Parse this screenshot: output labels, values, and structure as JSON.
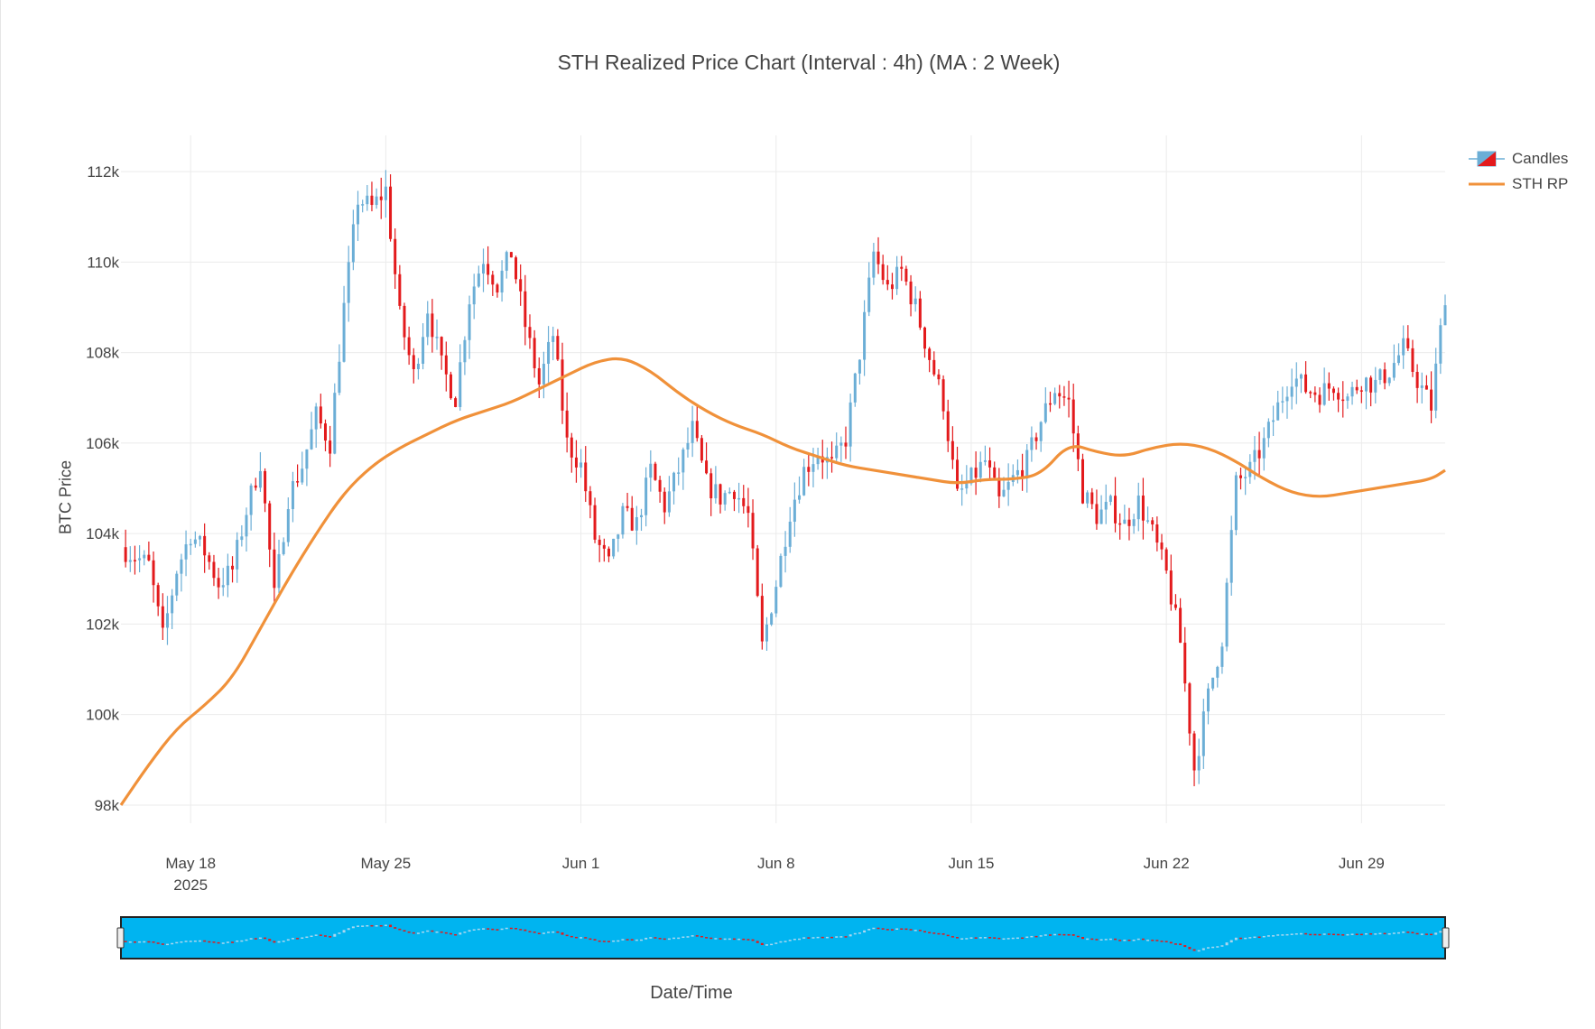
{
  "chart_data": {
    "type": "candlestick",
    "title": "STH Realized Price Chart (Interval : 4h) (MA : 2 Week)",
    "xlabel": "Date/Time",
    "ylabel": "BTC Price",
    "ylim": [
      97600,
      112800
    ],
    "xlim": [
      "2025-05-15 12:00",
      "2025-07-02 00:00"
    ],
    "yticks": [
      98000,
      100000,
      102000,
      104000,
      106000,
      108000,
      110000,
      112000
    ],
    "ytick_labels": [
      "98k",
      "100k",
      "102k",
      "104k",
      "106k",
      "108k",
      "110k",
      "112k"
    ],
    "xticks": [
      "2025-05-18",
      "2025-05-25",
      "2025-06-01",
      "2025-06-08",
      "2025-06-15",
      "2025-06-22",
      "2025-06-29"
    ],
    "xtick_labels": [
      "May 18",
      "May 25",
      "Jun 1",
      "Jun 8",
      "Jun 15",
      "Jun 22",
      "Jun 29"
    ],
    "xtick_sublabel": "2025",
    "interval_hours": 4,
    "grid": true,
    "legend_position": "top-right",
    "range_slider": true,
    "colors": {
      "increasing": "#6baed6",
      "decreasing": "#e31a1c",
      "sth_rp": "#f0913a",
      "slider_bg": "#00b4f0",
      "grid": "#ebebeb"
    },
    "series": [
      {
        "name": "Candles",
        "kind": "ohlc",
        "close_anchors": [
          [
            "2025-05-15 12:00",
            103700
          ],
          [
            "2025-05-16 12:00",
            103300
          ],
          [
            "2025-05-17 00:00",
            101700
          ],
          [
            "2025-05-17 12:00",
            103200
          ],
          [
            "2025-05-18 00:00",
            104000
          ],
          [
            "2025-05-18 12:00",
            103600
          ],
          [
            "2025-05-19 00:00",
            102900
          ],
          [
            "2025-05-19 12:00",
            103200
          ],
          [
            "2025-05-20 00:00",
            104500
          ],
          [
            "2025-05-20 12:00",
            105600
          ],
          [
            "2025-05-21 00:00",
            102600
          ],
          [
            "2025-05-21 12:00",
            104800
          ],
          [
            "2025-05-22 00:00",
            105500
          ],
          [
            "2025-05-22 12:00",
            106600
          ],
          [
            "2025-05-23 00:00",
            106000
          ],
          [
            "2025-05-23 12:00",
            109000
          ],
          [
            "2025-05-24 00:00",
            111400
          ],
          [
            "2025-05-24 12:00",
            111200
          ],
          [
            "2025-05-25 00:00",
            111600
          ],
          [
            "2025-05-25 12:00",
            108800
          ],
          [
            "2025-05-26 00:00",
            107500
          ],
          [
            "2025-05-26 12:00",
            109000
          ],
          [
            "2025-05-27 00:00",
            107700
          ],
          [
            "2025-05-27 12:00",
            107000
          ],
          [
            "2025-05-28 00:00",
            109200
          ],
          [
            "2025-05-28 12:00",
            110100
          ],
          [
            "2025-05-29 00:00",
            109500
          ],
          [
            "2025-05-29 12:00",
            110200
          ],
          [
            "2025-05-30 00:00",
            108600
          ],
          [
            "2025-05-30 12:00",
            107300
          ],
          [
            "2025-05-31 00:00",
            108400
          ],
          [
            "2025-05-31 12:00",
            106000
          ],
          [
            "2025-06-01 00:00",
            105500
          ],
          [
            "2025-06-01 12:00",
            103900
          ],
          [
            "2025-06-02 00:00",
            103300
          ],
          [
            "2025-06-02 12:00",
            104400
          ],
          [
            "2025-06-03 00:00",
            104200
          ],
          [
            "2025-06-03 12:00",
            105400
          ],
          [
            "2025-06-04 00:00",
            104600
          ],
          [
            "2025-06-04 12:00",
            105400
          ],
          [
            "2025-06-05 00:00",
            106300
          ],
          [
            "2025-06-05 12:00",
            105100
          ],
          [
            "2025-06-06 00:00",
            104800
          ],
          [
            "2025-06-06 12:00",
            105000
          ],
          [
            "2025-06-07 00:00",
            104400
          ],
          [
            "2025-06-07 12:00",
            101500
          ],
          [
            "2025-06-08 00:00",
            102900
          ],
          [
            "2025-06-08 12:00",
            104500
          ],
          [
            "2025-06-09 00:00",
            105400
          ],
          [
            "2025-06-09 12:00",
            105800
          ],
          [
            "2025-06-10 00:00",
            105500
          ],
          [
            "2025-06-10 12:00",
            106100
          ],
          [
            "2025-06-11 00:00",
            108000
          ],
          [
            "2025-06-11 12:00",
            110200
          ],
          [
            "2025-06-12 00:00",
            109400
          ],
          [
            "2025-06-12 12:00",
            109800
          ],
          [
            "2025-06-13 00:00",
            109000
          ],
          [
            "2025-06-13 12:00",
            107900
          ],
          [
            "2025-06-14 00:00",
            106900
          ],
          [
            "2025-06-14 12:00",
            104800
          ],
          [
            "2025-06-15 00:00",
            105200
          ],
          [
            "2025-06-15 12:00",
            105600
          ],
          [
            "2025-06-16 00:00",
            104700
          ],
          [
            "2025-06-16 12:00",
            105200
          ],
          [
            "2025-06-17 00:00",
            105600
          ],
          [
            "2025-06-17 12:00",
            106500
          ],
          [
            "2025-06-18 00:00",
            107200
          ],
          [
            "2025-06-18 12:00",
            106900
          ],
          [
            "2025-06-19 00:00",
            104900
          ],
          [
            "2025-06-19 12:00",
            104400
          ],
          [
            "2025-06-20 00:00",
            104600
          ],
          [
            "2025-06-20 12:00",
            104200
          ],
          [
            "2025-06-21 00:00",
            104700
          ],
          [
            "2025-06-21 12:00",
            104000
          ],
          [
            "2025-06-22 00:00",
            103100
          ],
          [
            "2025-06-22 12:00",
            101600
          ],
          [
            "2025-06-23 00:00",
            98800
          ],
          [
            "2025-06-23 12:00",
            100400
          ],
          [
            "2025-06-24 00:00",
            101700
          ],
          [
            "2025-06-24 12:00",
            105100
          ],
          [
            "2025-06-25 00:00",
            105400
          ],
          [
            "2025-06-25 12:00",
            106000
          ],
          [
            "2025-06-26 00:00",
            106800
          ],
          [
            "2025-06-26 12:00",
            107500
          ],
          [
            "2025-06-27 00:00",
            107200
          ],
          [
            "2025-06-27 12:00",
            107100
          ],
          [
            "2025-06-28 00:00",
            107300
          ],
          [
            "2025-06-28 12:00",
            107000
          ],
          [
            "2025-06-29 00:00",
            107400
          ],
          [
            "2025-06-29 12:00",
            107300
          ],
          [
            "2025-06-30 00:00",
            107600
          ],
          [
            "2025-06-30 12:00",
            108100
          ],
          [
            "2025-07-01 00:00",
            107400
          ],
          [
            "2025-07-01 12:00",
            106800
          ],
          [
            "2025-07-02 00:00",
            109300
          ]
        ]
      },
      {
        "name": "STH RP",
        "kind": "line",
        "points": [
          [
            "2025-05-15 12:00",
            98000
          ],
          [
            "2025-05-16 12:00",
            98900
          ],
          [
            "2025-05-17 12:00",
            99700
          ],
          [
            "2025-05-18 12:00",
            100200
          ],
          [
            "2025-05-19 12:00",
            100800
          ],
          [
            "2025-05-20 12:00",
            101900
          ],
          [
            "2025-05-21 12:00",
            103000
          ],
          [
            "2025-05-22 12:00",
            104000
          ],
          [
            "2025-05-23 12:00",
            104900
          ],
          [
            "2025-05-24 12:00",
            105500
          ],
          [
            "2025-05-25 12:00",
            105900
          ],
          [
            "2025-05-26 12:00",
            106200
          ],
          [
            "2025-05-27 12:00",
            106500
          ],
          [
            "2025-05-28 12:00",
            106700
          ],
          [
            "2025-05-29 12:00",
            106900
          ],
          [
            "2025-05-30 12:00",
            107200
          ],
          [
            "2025-05-31 12:00",
            107500
          ],
          [
            "2025-06-01 12:00",
            107800
          ],
          [
            "2025-06-02 12:00",
            107900
          ],
          [
            "2025-06-03 12:00",
            107600
          ],
          [
            "2025-06-04 12:00",
            107100
          ],
          [
            "2025-06-05 12:00",
            106700
          ],
          [
            "2025-06-06 12:00",
            106400
          ],
          [
            "2025-06-07 12:00",
            106200
          ],
          [
            "2025-06-08 12:00",
            105900
          ],
          [
            "2025-06-09 12:00",
            105700
          ],
          [
            "2025-06-10 12:00",
            105500
          ],
          [
            "2025-06-11 12:00",
            105400
          ],
          [
            "2025-06-12 12:00",
            105300
          ],
          [
            "2025-06-13 12:00",
            105200
          ],
          [
            "2025-06-14 12:00",
            105100
          ],
          [
            "2025-06-15 12:00",
            105200
          ],
          [
            "2025-06-16 12:00",
            105200
          ],
          [
            "2025-06-17 12:00",
            105300
          ],
          [
            "2025-06-18 12:00",
            106000
          ],
          [
            "2025-06-19 12:00",
            105800
          ],
          [
            "2025-06-20 12:00",
            105700
          ],
          [
            "2025-06-21 12:00",
            105900
          ],
          [
            "2025-06-22 12:00",
            106000
          ],
          [
            "2025-06-23 12:00",
            105900
          ],
          [
            "2025-06-24 12:00",
            105600
          ],
          [
            "2025-06-25 12:00",
            105200
          ],
          [
            "2025-06-26 12:00",
            104900
          ],
          [
            "2025-06-27 12:00",
            104800
          ],
          [
            "2025-06-28 12:00",
            104900
          ],
          [
            "2025-06-29 12:00",
            105000
          ],
          [
            "2025-06-30 12:00",
            105100
          ],
          [
            "2025-07-01 12:00",
            105200
          ],
          [
            "2025-07-02 00:00",
            105400
          ]
        ]
      }
    ]
  }
}
